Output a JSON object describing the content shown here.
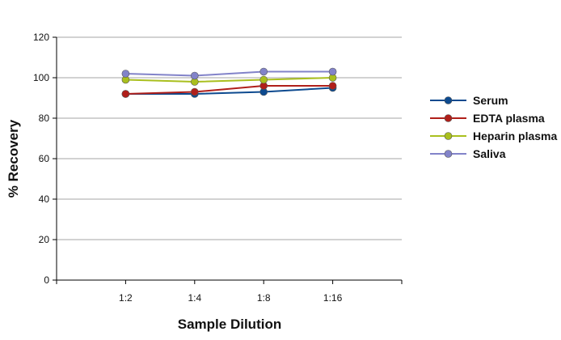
{
  "chart_data": {
    "type": "line",
    "title": "",
    "xlabel": "Sample Dilution",
    "ylabel": "% Recovery",
    "categories": [
      "1:2",
      "1:4",
      "1:8",
      "1:16"
    ],
    "ylim": [
      0,
      120
    ],
    "yticks": [
      0,
      20,
      40,
      60,
      80,
      100,
      120
    ],
    "grid": true,
    "legend_position": "right",
    "series": [
      {
        "name": "Serum",
        "values": [
          92,
          92,
          93,
          95
        ],
        "color": "#0d4a8f"
      },
      {
        "name": "EDTA plasma",
        "values": [
          92,
          93,
          96,
          96
        ],
        "color": "#b01f1a"
      },
      {
        "name": "Heparin plasma",
        "values": [
          99,
          98,
          99,
          100
        ],
        "color": "#a9bf1e"
      },
      {
        "name": "Saliva",
        "values": [
          102,
          101,
          103,
          103
        ],
        "color": "#8283c9"
      }
    ]
  }
}
